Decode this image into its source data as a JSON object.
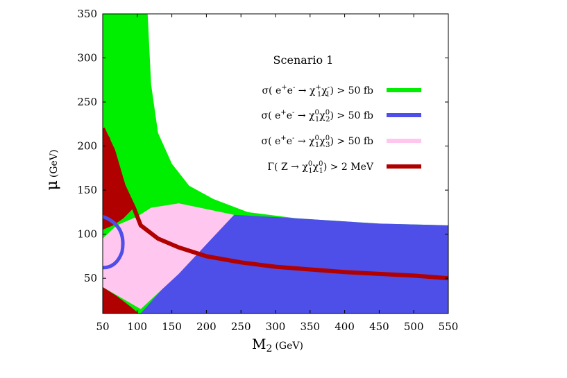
{
  "chart_data": {
    "type": "area",
    "title": "Scenario 1",
    "xlabel": {
      "main": "M",
      "sub": "2",
      "unit": "(GeV)"
    },
    "ylabel": {
      "main": "μ",
      "unit": "(GeV)"
    },
    "xlim": [
      50,
      550
    ],
    "ylim": [
      10,
      350
    ],
    "xticks": [
      50,
      100,
      150,
      200,
      250,
      300,
      350,
      400,
      450,
      500,
      550
    ],
    "yticks": [
      50,
      100,
      150,
      200,
      250,
      300,
      350
    ],
    "legend_position": "upper-right",
    "series": [
      {
        "name": "σ( e⁺e⁻ → χ₁⁺χ₁⁻) > 50 fb",
        "color": "#00ee00",
        "region_boundary": [
          [
            115,
            350
          ],
          [
            120,
            270
          ],
          [
            130,
            215
          ],
          [
            150,
            180
          ],
          [
            175,
            155
          ],
          [
            210,
            140
          ],
          [
            260,
            125
          ],
          [
            330,
            118
          ],
          [
            450,
            112
          ],
          [
            550,
            110
          ]
        ]
      },
      {
        "name": "σ( e⁺e⁻ → χ₁⁰χ₂⁰) > 50 fb",
        "color": "#4e4ee8",
        "region_boundary": [
          [
            105,
            10
          ],
          [
            150,
            50
          ],
          [
            200,
            90
          ],
          [
            240,
            122
          ],
          [
            330,
            118
          ],
          [
            450,
            112
          ],
          [
            550,
            110
          ]
        ]
      },
      {
        "name": "σ( e⁺e⁻ → χ₁⁰χ₃⁰) > 50 fb",
        "color": "#ffc6f0",
        "region_boundary": [
          [
            50,
            40
          ],
          [
            105,
            15
          ],
          [
            160,
            55
          ],
          [
            240,
            122
          ],
          [
            160,
            135
          ],
          [
            120,
            130
          ],
          [
            100,
            120
          ],
          [
            70,
            110
          ],
          [
            50,
            95
          ]
        ]
      },
      {
        "name": "Γ( Z → χ₁⁰χ₁⁰) > 2 MeV",
        "color": "#b00000",
        "curve": [
          [
            50,
            220
          ],
          [
            65,
            195
          ],
          [
            80,
            155
          ],
          [
            95,
            130
          ],
          [
            105,
            110
          ],
          [
            130,
            95
          ],
          [
            160,
            85
          ],
          [
            200,
            75
          ],
          [
            250,
            68
          ],
          [
            300,
            63
          ],
          [
            350,
            60
          ],
          [
            400,
            57
          ],
          [
            450,
            55
          ],
          [
            500,
            53
          ],
          [
            550,
            50
          ]
        ]
      }
    ],
    "legend": [
      {
        "pre": "σ( e",
        "sup1": "+",
        "mid1": "e",
        "sup2": "-",
        "arrow": " → χ",
        "sup3": "+",
        "sub3": "1",
        "mid2": "χ",
        "sup4": "-",
        "sub4": "1",
        "post": ") > 50 fb",
        "color": "#00ee00"
      },
      {
        "pre": "σ( e",
        "sup1": "+",
        "mid1": "e",
        "sup2": "-",
        "arrow": " → χ",
        "sup3": "0",
        "sub3": "1",
        "mid2": "χ",
        "sup4": "0",
        "sub4": "2",
        "post": ") > 50 fb",
        "color": "#4e4ee8"
      },
      {
        "pre": "σ( e",
        "sup1": "+",
        "mid1": "e",
        "sup2": "-",
        "arrow": " → χ",
        "sup3": "0",
        "sub3": "1",
        "mid2": "χ",
        "sup4": "0",
        "sub4": "3",
        "post": ") > 50 fb",
        "color": "#ffc6f0"
      },
      {
        "pre": "Γ( Z",
        "sup1": "",
        "mid1": "",
        "sup2": "",
        "arrow": " → χ",
        "sup3": "0",
        "sub3": "1",
        "mid2": "χ",
        "sup4": "0",
        "sub4": "1",
        "post": ") > 2 MeV",
        "color": "#b00000"
      }
    ]
  }
}
